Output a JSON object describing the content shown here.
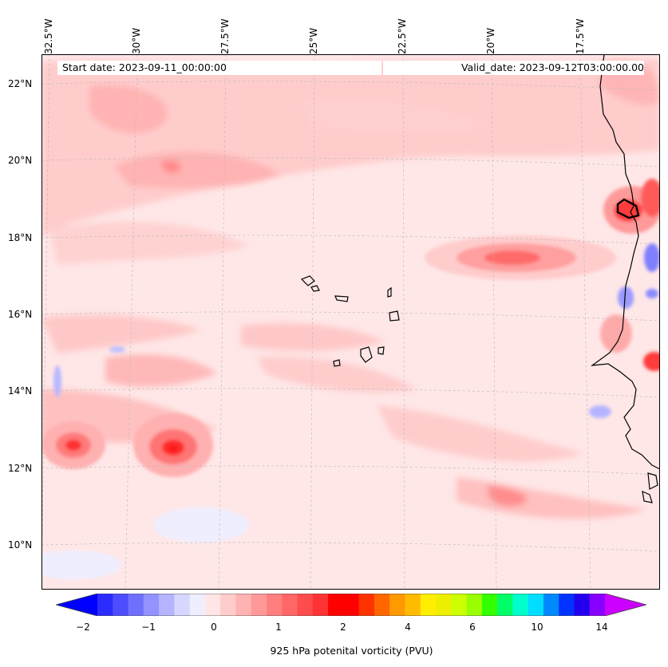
{
  "map": {
    "lon_labels": [
      "32.5°W",
      "30°W",
      "27.5°W",
      "25°W",
      "22.5°W",
      "20°W",
      "17.5°W"
    ],
    "lat_labels": [
      "22°N",
      "20°N",
      "18°N",
      "16°N",
      "14°N",
      "12°N",
      "10°N"
    ],
    "start_date": "Start date: 2023-09-11_00:00:00",
    "valid_date": "Valid_date: 2023-09-12T03:00:00.00",
    "colorbar": {
      "tick_labels": [
        "−2",
        "−1",
        "0",
        "1",
        "2",
        "4",
        "6",
        "10",
        "14"
      ],
      "label": "925 hPa potenital vorticity (PVU)",
      "colors": [
        "#0000ff",
        "#2b2bff",
        "#4d4dff",
        "#7070ff",
        "#9393ff",
        "#b4b4ff",
        "#d6d6ff",
        "#eeeeff",
        "#ffe5e5",
        "#ffcccc",
        "#ffb2b2",
        "#ff9999",
        "#ff7f7f",
        "#ff6666",
        "#ff4c4c",
        "#ff3333",
        "#ff0000",
        "#ff0000",
        "#ff3300",
        "#ff6600",
        "#ff9900",
        "#ffbb00",
        "#ffee00",
        "#eeee00",
        "#ccff00",
        "#99ff00",
        "#33ff00",
        "#00ff66",
        "#00ffcc",
        "#00ddff",
        "#0088ff",
        "#0033ff",
        "#2200ee",
        "#8800ff",
        "#cc00ff"
      ]
    }
  }
}
